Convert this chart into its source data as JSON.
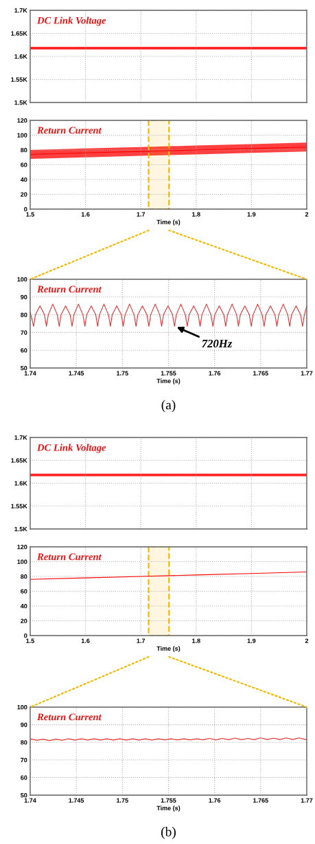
{
  "chart_data": [
    {
      "type": "line",
      "title": "DC Link Voltage",
      "xlim": [
        1.5,
        2
      ],
      "xticks": [
        1.5,
        1.6,
        1.7,
        1.8,
        1.9,
        2
      ],
      "ylim": [
        1500,
        1700
      ],
      "yticks": [
        {
          "value": 1500,
          "label": "1.5K"
        },
        {
          "value": 1550,
          "label": "1.55K"
        },
        {
          "value": 1600,
          "label": "1.6K"
        },
        {
          "value": 1650,
          "label": "1.65K"
        },
        {
          "value": 1700,
          "label": "1.7K"
        }
      ],
      "tick_labels": "y",
      "grid": true,
      "series": [
        {
          "color": "#ff0000",
          "x": [
            1.5,
            2
          ],
          "values": [
            1618,
            1618
          ],
          "lower": [
            1615,
            1615
          ],
          "upper": [
            1621,
            1621
          ]
        }
      ]
    },
    {
      "type": "line",
      "title": "Return Current",
      "xlabel": "Time (s)",
      "xlim": [
        1.5,
        2
      ],
      "xticks": [
        1.5,
        1.6,
        1.7,
        1.8,
        1.9,
        2
      ],
      "ylim": [
        0,
        120
      ],
      "yticks": [
        0,
        20,
        40,
        60,
        80,
        100,
        120
      ],
      "grid": true,
      "bands": [
        {
          "axis": "x",
          "from": 1.714,
          "to": 1.751,
          "color": "#f5b800"
        }
      ],
      "series": [
        {
          "color": "#ff0000",
          "x": [
            1.5,
            1.6,
            1.7,
            1.8,
            1.9,
            2
          ],
          "values": [
            74,
            76,
            78,
            80,
            82,
            84
          ],
          "lower": [
            68,
            70,
            72,
            74,
            76,
            78
          ],
          "upper": [
            80,
            82,
            84,
            86,
            88,
            90
          ]
        }
      ]
    },
    {
      "type": "line",
      "title": "Return Current",
      "xlabel": "Time (s)",
      "xlim": [
        1.74,
        1.77
      ],
      "xticks": [
        1.74,
        1.745,
        1.75,
        1.755,
        1.76,
        1.765,
        1.77
      ],
      "ylim": [
        50,
        100
      ],
      "yticks": [
        50,
        60,
        70,
        80,
        90,
        100
      ],
      "grid": true,
      "annotations": [
        {
          "text": "720Hz",
          "x": 1.7557,
          "y": 73.5
        },
        "(a)"
      ],
      "series": [
        {
          "color": "#e03030",
          "x": [
            1.74,
            1.74037,
            1.74057,
            1.74106,
            1.74155,
            1.74176,
            1.74196,
            1.74245,
            1.74294,
            1.74315,
            1.74335,
            1.74384,
            1.74433,
            1.74454,
            1.74474,
            1.74523,
            1.74572,
            1.74593,
            1.74613,
            1.74662,
            1.74711,
            1.74731,
            1.74751,
            1.748,
            1.74849,
            1.7487,
            1.7489,
            1.74939,
            1.74988,
            1.75009,
            1.75029,
            1.75078,
            1.75127,
            1.75148,
            1.75168,
            1.75217,
            1.75266,
            1.75287,
            1.75307,
            1.75356,
            1.75405,
            1.75426,
            1.75446,
            1.75495,
            1.75544,
            1.75565,
            1.75585,
            1.75634,
            1.75683,
            1.75704,
            1.75724,
            1.75773,
            1.75822,
            1.75843,
            1.75863,
            1.75912,
            1.75961,
            1.75982,
            1.76002,
            1.76051,
            1.761,
            1.76121,
            1.76141,
            1.7619,
            1.76239,
            1.76259,
            1.76279,
            1.76328,
            1.76377,
            1.76398,
            1.76418,
            1.76467,
            1.76516,
            1.76537,
            1.76557,
            1.76606,
            1.76655,
            1.76676,
            1.76696,
            1.76745,
            1.76794,
            1.76815,
            1.76835,
            1.76884,
            1.76933,
            1.76954,
            1.76974,
            1.77
          ],
          "values": [
            81.5,
            73.5,
            80,
            85,
            80,
            73.5,
            80,
            86,
            80,
            73.5,
            80,
            85,
            80,
            73.5,
            80,
            86,
            80,
            73.5,
            80,
            85,
            80,
            73.5,
            80,
            86,
            80,
            73.5,
            80,
            85,
            80,
            73.5,
            80,
            86,
            80,
            73.5,
            80,
            85,
            80,
            73.5,
            80,
            86,
            80,
            73.5,
            80,
            85,
            80,
            73.5,
            80,
            86,
            80,
            73.5,
            80,
            85,
            80,
            73.5,
            80,
            86,
            80,
            73.5,
            80,
            85,
            80,
            73.5,
            80,
            86,
            80,
            73.5,
            80,
            85,
            80,
            73.5,
            80,
            86,
            80,
            73.5,
            80,
            85,
            80,
            73.5,
            80,
            86,
            80,
            73.5,
            80,
            85,
            80,
            73.5,
            80,
            85
          ]
        }
      ]
    },
    {
      "type": "line",
      "title": "DC Link Voltage",
      "xlim": [
        1.5,
        2
      ],
      "xticks": [
        1.5,
        1.6,
        1.7,
        1.8,
        1.9,
        2
      ],
      "ylim": [
        1500,
        1700
      ],
      "yticks": [
        {
          "value": 1500,
          "label": "1.5K"
        },
        {
          "value": 1550,
          "label": "1.55K"
        },
        {
          "value": 1600,
          "label": "1.6K"
        },
        {
          "value": 1650,
          "label": "1.65K"
        },
        {
          "value": 1700,
          "label": "1.7K"
        }
      ],
      "tick_labels": "y",
      "grid": true,
      "series": [
        {
          "color": "#ff0000",
          "x": [
            1.5,
            2
          ],
          "values": [
            1618,
            1618
          ],
          "lower": [
            1615,
            1615
          ],
          "upper": [
            1621,
            1621
          ]
        }
      ]
    },
    {
      "type": "line",
      "title": "Return Current",
      "xlabel": "Time (s)",
      "xlim": [
        1.5,
        2
      ],
      "xticks": [
        1.5,
        1.6,
        1.7,
        1.8,
        1.9,
        2
      ],
      "ylim": [
        0,
        120
      ],
      "yticks": [
        0,
        20,
        40,
        60,
        80,
        100,
        120
      ],
      "grid": true,
      "bands": [
        {
          "axis": "x",
          "from": 1.714,
          "to": 1.751,
          "color": "#f5b800"
        }
      ],
      "series": [
        {
          "color": "#ff0000",
          "x": [
            1.5,
            1.6,
            1.7,
            1.8,
            1.9,
            2
          ],
          "values": [
            76,
            78,
            80,
            82,
            84,
            86
          ]
        }
      ]
    },
    {
      "type": "line",
      "title": "Return Current",
      "xlabel": "Time (s)",
      "xlim": [
        1.74,
        1.77
      ],
      "xticks": [
        1.74,
        1.745,
        1.75,
        1.755,
        1.76,
        1.765,
        1.77
      ],
      "ylim": [
        50,
        100
      ],
      "yticks": [
        50,
        60,
        70,
        80,
        90,
        100
      ],
      "grid": true,
      "annotations": [
        "(b)"
      ],
      "series": [
        {
          "color": "#e03030",
          "x": [
            1.74,
            1.74069,
            1.74139,
            1.74208,
            1.74278,
            1.74347,
            1.74417,
            1.74486,
            1.74556,
            1.74625,
            1.74694,
            1.74764,
            1.74833,
            1.74903,
            1.74972,
            1.75042,
            1.75111,
            1.75181,
            1.7525,
            1.75319,
            1.75389,
            1.75458,
            1.75528,
            1.75597,
            1.75667,
            1.75736,
            1.75806,
            1.75875,
            1.75944,
            1.76014,
            1.76083,
            1.76153,
            1.76222,
            1.76292,
            1.76361,
            1.76431,
            1.765,
            1.76569,
            1.76639,
            1.76708,
            1.76778,
            1.76847,
            1.76917,
            1.76986,
            1.77
          ],
          "values": [
            82.0,
            81.2,
            81.8,
            81.0,
            81.8,
            81.2,
            82.0,
            81.3,
            82.0,
            81.3,
            82.0,
            81.3,
            82.0,
            81.3,
            82.0,
            81.3,
            82.0,
            81.3,
            82.0,
            81.3,
            82.0,
            81.4,
            82.0,
            81.4,
            82.0,
            81.4,
            82.0,
            81.4,
            82.2,
            81.4,
            82.2,
            81.5,
            82.4,
            81.5,
            82.2,
            81.5,
            82.5,
            81.6,
            82.3,
            81.6,
            82.5,
            81.6,
            82.5,
            81.6,
            81.7
          ]
        }
      ]
    }
  ]
}
